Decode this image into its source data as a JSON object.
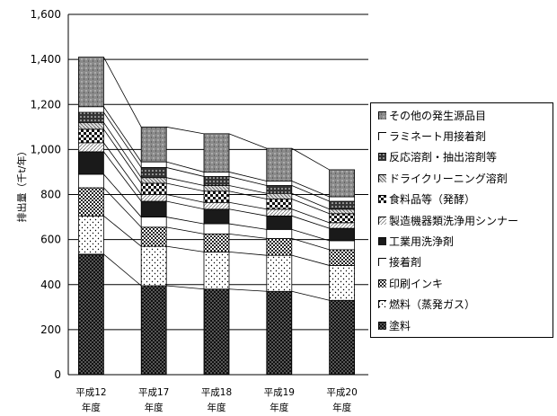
{
  "chart_data": {
    "type": "bar",
    "stacked": true,
    "ylabel": "排出量（千t/年）",
    "ylim": [
      0,
      1600
    ],
    "yticks": [
      "0",
      "200",
      "400",
      "600",
      "800",
      "1,000",
      "1,200",
      "1,400",
      "1,600"
    ],
    "ytick_values": [
      0,
      200,
      400,
      600,
      800,
      1000,
      1200,
      1400,
      1600
    ],
    "categories": [
      {
        "line1": "平成12",
        "line2": "年度"
      },
      {
        "line1": "平成17",
        "line2": "年度"
      },
      {
        "line1": "平成18",
        "line2": "年度"
      },
      {
        "line1": "平成19",
        "line2": "年度"
      },
      {
        "line1": "平成20",
        "line2": "年度"
      }
    ],
    "grid": true,
    "connector_lines": true,
    "legend_position": "right",
    "series": [
      {
        "name": "塗料",
        "values": [
          535,
          395,
          380,
          370,
          330
        ],
        "pattern": "dots-dense",
        "color": "#111111"
      },
      {
        "name": "燃料（蒸発ガス）",
        "values": [
          170,
          175,
          165,
          160,
          155
        ],
        "pattern": "dots-sparse",
        "color": "#ffffff"
      },
      {
        "name": "印刷インキ",
        "values": [
          125,
          85,
          80,
          75,
          70
        ],
        "pattern": "checker",
        "color": "#444444"
      },
      {
        "name": "接着剤",
        "values": [
          60,
          45,
          45,
          40,
          40
        ],
        "pattern": "white",
        "color": "#ffffff"
      },
      {
        "name": "工業用洗浄剤",
        "values": [
          100,
          70,
          65,
          60,
          55
        ],
        "pattern": "solid",
        "color": "#1a1a1a"
      },
      {
        "name": "製造機器類洗浄用シンナー",
        "values": [
          40,
          30,
          30,
          30,
          25
        ],
        "pattern": "hatch-light",
        "color": "#cccccc"
      },
      {
        "name": "食料品等（発酵）",
        "values": [
          60,
          50,
          50,
          45,
          40
        ],
        "pattern": "checker-bold",
        "color": "#222222"
      },
      {
        "name": "ドライクリーニング溶剤",
        "values": [
          30,
          25,
          25,
          25,
          20
        ],
        "pattern": "hatch-grey",
        "color": "#999999"
      },
      {
        "name": "反応溶剤・抽出溶剤等",
        "values": [
          45,
          45,
          40,
          35,
          35
        ],
        "pattern": "dots-dark",
        "color": "#222222"
      },
      {
        "name": "ラミネート用接着剤",
        "values": [
          25,
          25,
          20,
          20,
          20
        ],
        "pattern": "white",
        "color": "#ffffff"
      },
      {
        "name": "その他の発生源品目",
        "values": [
          220,
          155,
          170,
          145,
          120
        ],
        "pattern": "grey-speckle",
        "color": "#888888"
      }
    ]
  }
}
